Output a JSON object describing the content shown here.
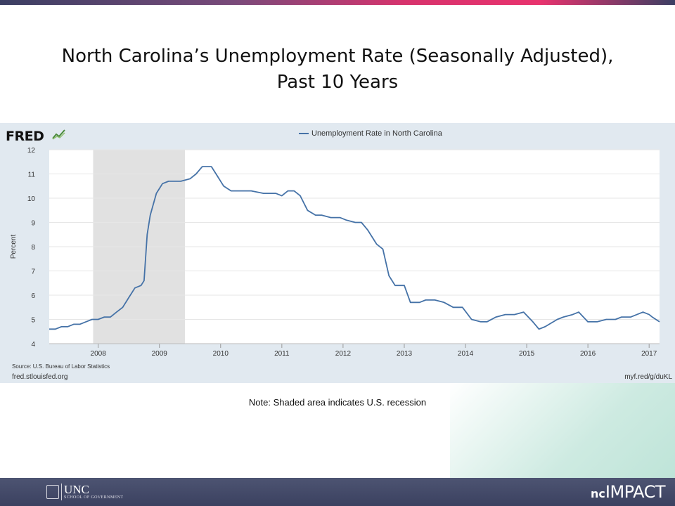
{
  "slide": {
    "title_line1": "North Carolina’s Unemployment Rate (Seasonally Adjusted),",
    "title_line2": "Past 10 Years",
    "note": "Note: Shaded area indicates U.S. recession"
  },
  "fred": {
    "logo_text": "FRED",
    "source": "Source: U.S. Bureau of Labor Statistics",
    "site": "fred.stlouisfed.org",
    "shortlink": "myf.red/g/duKL"
  },
  "footer": {
    "unc_word": "UNC",
    "unc_sub": "SCHOOL OF GOVERNMENT",
    "brand_nc": "nc",
    "brand_impact": "IMPACT"
  },
  "chart_data": {
    "type": "line",
    "ylabel": "Percent",
    "xlabel": "",
    "ylim": [
      4,
      12
    ],
    "xlim": [
      2007.2,
      2017.17
    ],
    "yticks": [
      4,
      5,
      6,
      7,
      8,
      9,
      10,
      11,
      12
    ],
    "xticks": [
      "2008",
      "2009",
      "2010",
      "2011",
      "2012",
      "2013",
      "2014",
      "2015",
      "2016",
      "2017"
    ],
    "grid": "horizontal",
    "legend_position": "top-center",
    "series_color": "#4572a7",
    "recession": {
      "start": 2007.917,
      "end": 2009.417
    },
    "series": [
      {
        "name": "Unemployment Rate in North Carolina",
        "x": [
          2007.2,
          2007.3,
          2007.4,
          2007.5,
          2007.6,
          2007.7,
          2007.8,
          2007.9,
          2008.0,
          2008.1,
          2008.2,
          2008.3,
          2008.4,
          2008.5,
          2008.6,
          2008.7,
          2008.75,
          2008.8,
          2008.85,
          2008.95,
          2009.05,
          2009.15,
          2009.25,
          2009.35,
          2009.5,
          2009.6,
          2009.7,
          2009.85,
          2009.95,
          2010.05,
          2010.17,
          2010.3,
          2010.5,
          2010.7,
          2010.9,
          2011.0,
          2011.1,
          2011.2,
          2011.3,
          2011.42,
          2011.55,
          2011.65,
          2011.8,
          2011.95,
          2012.05,
          2012.2,
          2012.3,
          2012.4,
          2012.55,
          2012.65,
          2012.75,
          2012.85,
          2013.0,
          2013.1,
          2013.25,
          2013.35,
          2013.5,
          2013.65,
          2013.8,
          2013.95,
          2014.1,
          2014.25,
          2014.35,
          2014.5,
          2014.65,
          2014.8,
          2014.95,
          2015.1,
          2015.2,
          2015.3,
          2015.5,
          2015.6,
          2015.75,
          2015.85,
          2016.0,
          2016.15,
          2016.3,
          2016.45,
          2016.55,
          2016.7,
          2016.8,
          2016.9,
          2017.0,
          2017.05,
          2017.17
        ],
        "values": [
          4.6,
          4.6,
          4.7,
          4.7,
          4.8,
          4.8,
          4.9,
          5.0,
          5.0,
          5.1,
          5.1,
          5.3,
          5.5,
          5.9,
          6.3,
          6.4,
          6.6,
          8.5,
          9.3,
          10.2,
          10.6,
          10.7,
          10.7,
          10.7,
          10.8,
          11.0,
          11.3,
          11.3,
          10.9,
          10.5,
          10.3,
          10.3,
          10.3,
          10.2,
          10.2,
          10.1,
          10.3,
          10.3,
          10.1,
          9.5,
          9.3,
          9.3,
          9.2,
          9.2,
          9.1,
          9.0,
          9.0,
          8.7,
          8.1,
          7.9,
          6.8,
          6.4,
          6.4,
          5.7,
          5.7,
          5.8,
          5.8,
          5.7,
          5.5,
          5.5,
          5.0,
          4.9,
          4.9,
          5.1,
          5.2,
          5.2,
          5.3,
          4.9,
          4.6,
          4.7,
          5.0,
          5.1,
          5.2,
          5.3,
          4.9,
          4.9,
          5.0,
          5.0,
          5.1,
          5.1,
          5.2,
          5.3,
          5.2,
          5.1,
          4.9
        ]
      }
    ]
  }
}
